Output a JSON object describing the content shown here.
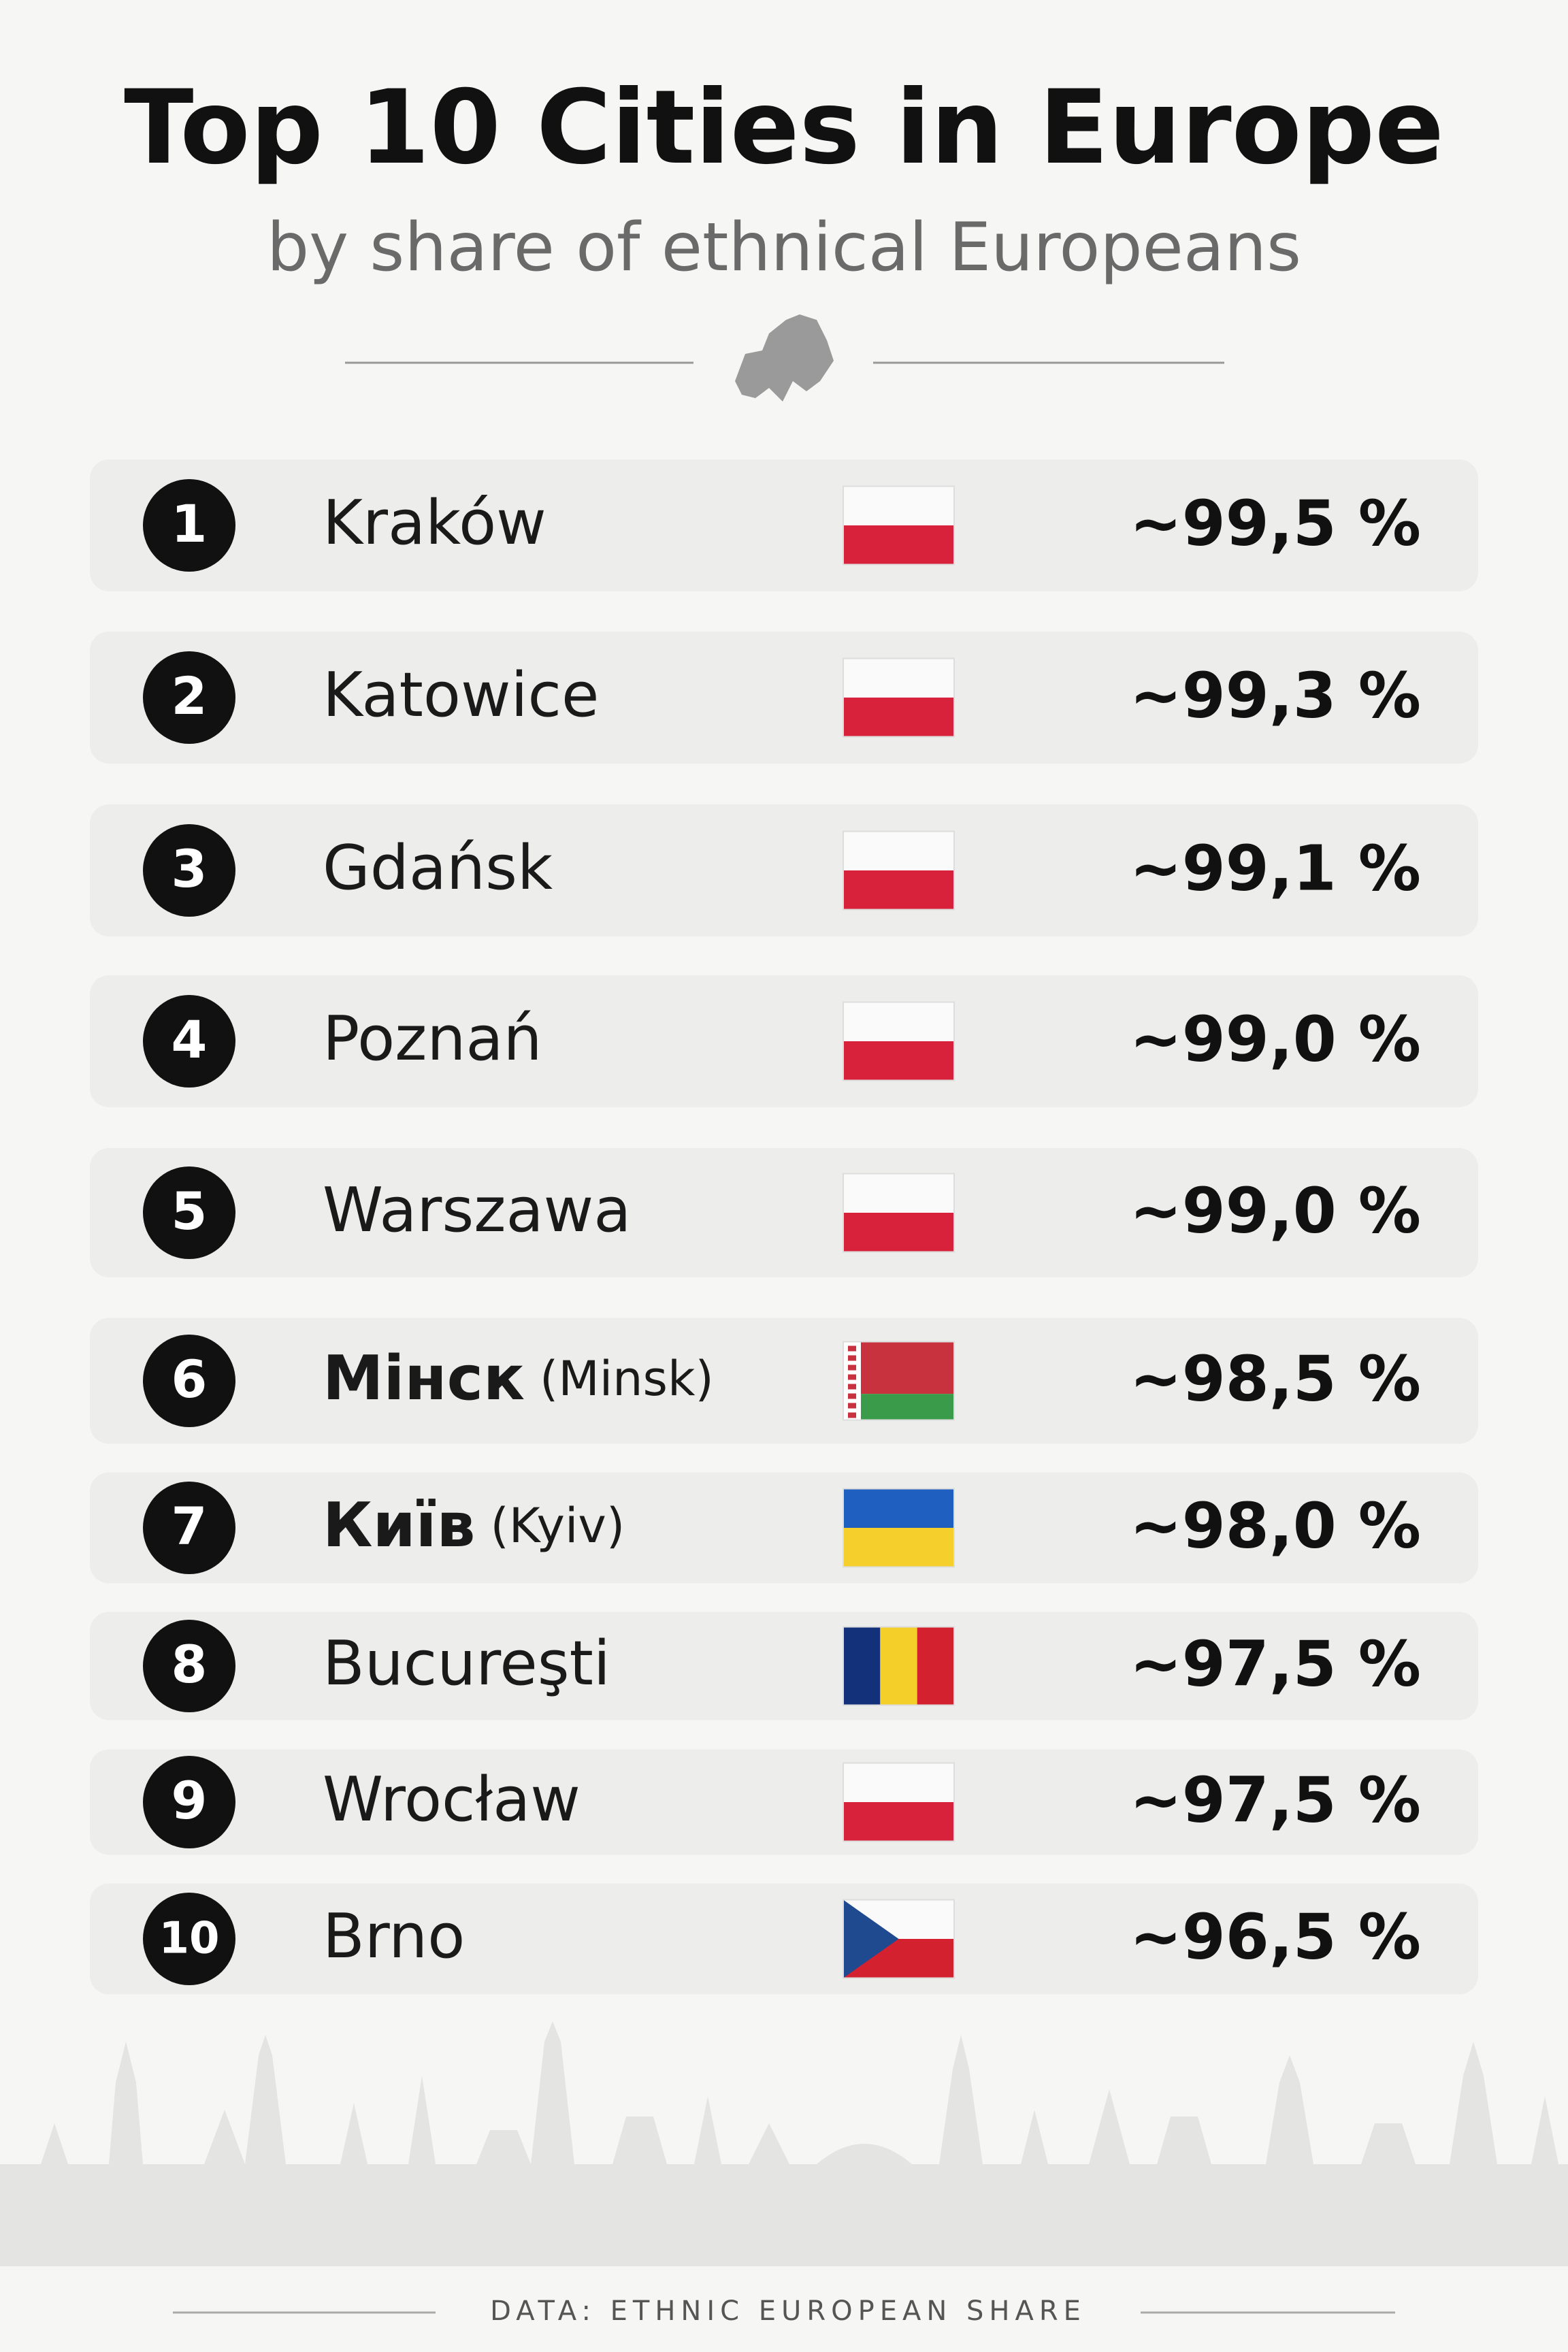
{
  "header": {
    "title": "Top 10 Cities in Europe",
    "subtitle": "by share of ethnical Europeans"
  },
  "rows": [
    {
      "rank": 1,
      "city": "Kraków",
      "share": "~99,5 %"
    },
    {
      "rank": 2,
      "city": "Katowice",
      "share": "~99,3 %"
    },
    {
      "rank": 3,
      "city": "Gdańsk",
      "share": "~99,1 %"
    },
    {
      "rank": 4,
      "city": "Poznań",
      "share": "~99,0 %"
    },
    {
      "rank": 5,
      "city": "Warszawa",
      "share": "~99,0 %"
    },
    {
      "rank": 6,
      "city": "Мінск",
      "alt": "(Minsk)",
      "share": "~98,5 %"
    },
    {
      "rank": 7,
      "city": "Київ",
      "alt": "(Kyiv)",
      "share": "~98,0 %"
    },
    {
      "rank": 8,
      "city": "Bucureşti",
      "share": "~97,5 %"
    },
    {
      "rank": 9,
      "city": "Wrocław",
      "share": "~97,5 %"
    },
    {
      "rank": 10,
      "city": "Brno",
      "share": "~96,5 %"
    }
  ],
  "footer": "DATA: ETHNIC EUROPEAN SHARE"
}
